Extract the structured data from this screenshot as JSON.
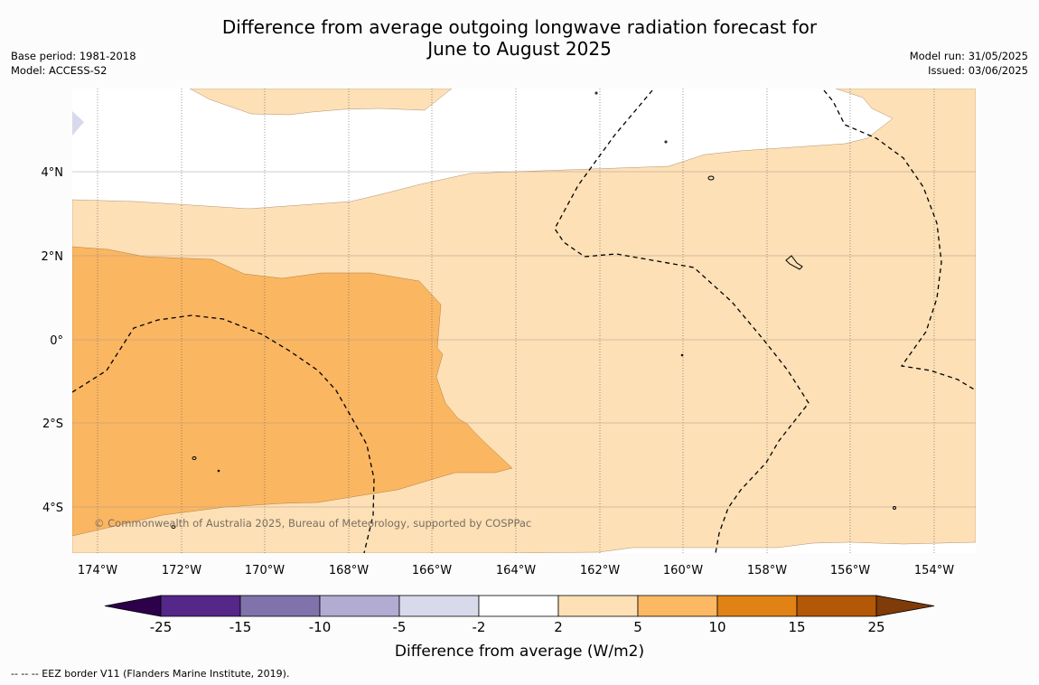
{
  "header": {
    "title_line1": "Difference from average outgoing longwave radiation forecast for",
    "title_line2": "June to August 2025",
    "base_period": "Base period: 1981-2018",
    "model": "Model: ACCESS-S2",
    "model_run": "Model run: 31/05/2025",
    "issued": "Issued: 03/06/2025"
  },
  "map": {
    "longitude_labels": [
      "174°W",
      "172°W",
      "170°W",
      "168°W",
      "166°W",
      "164°W",
      "162°W",
      "160°W",
      "158°W",
      "156°W",
      "154°W"
    ],
    "latitude_labels": [
      "4°N",
      "2°N",
      "0°",
      "2°S",
      "4°S"
    ],
    "copyright": "© Commonwealth of Australia 2025, Bureau of Meteorology, supported by COSPPac",
    "colors": {
      "band_2_5": "#fde0b6",
      "band_5_10": "#fbb662",
      "band_neg5_neg2": "#d8d9ec",
      "background": "#ffffff"
    }
  },
  "colorbar": {
    "ticks": [
      "-25",
      "-15",
      "-10",
      "-5",
      "-2",
      "2",
      "5",
      "10",
      "15",
      "25"
    ],
    "colors": [
      "#2d004b",
      "#542788",
      "#8073ac",
      "#b2abd2",
      "#d8daeb",
      "#ffffff",
      "#fee0b6",
      "#fdb863",
      "#e08214",
      "#b35806",
      "#7f3b08"
    ],
    "label": "Difference from average (W/m2)"
  },
  "footnote": "--  --  -- EEZ border V11 (Flanders Marine Institute, 2019)."
}
